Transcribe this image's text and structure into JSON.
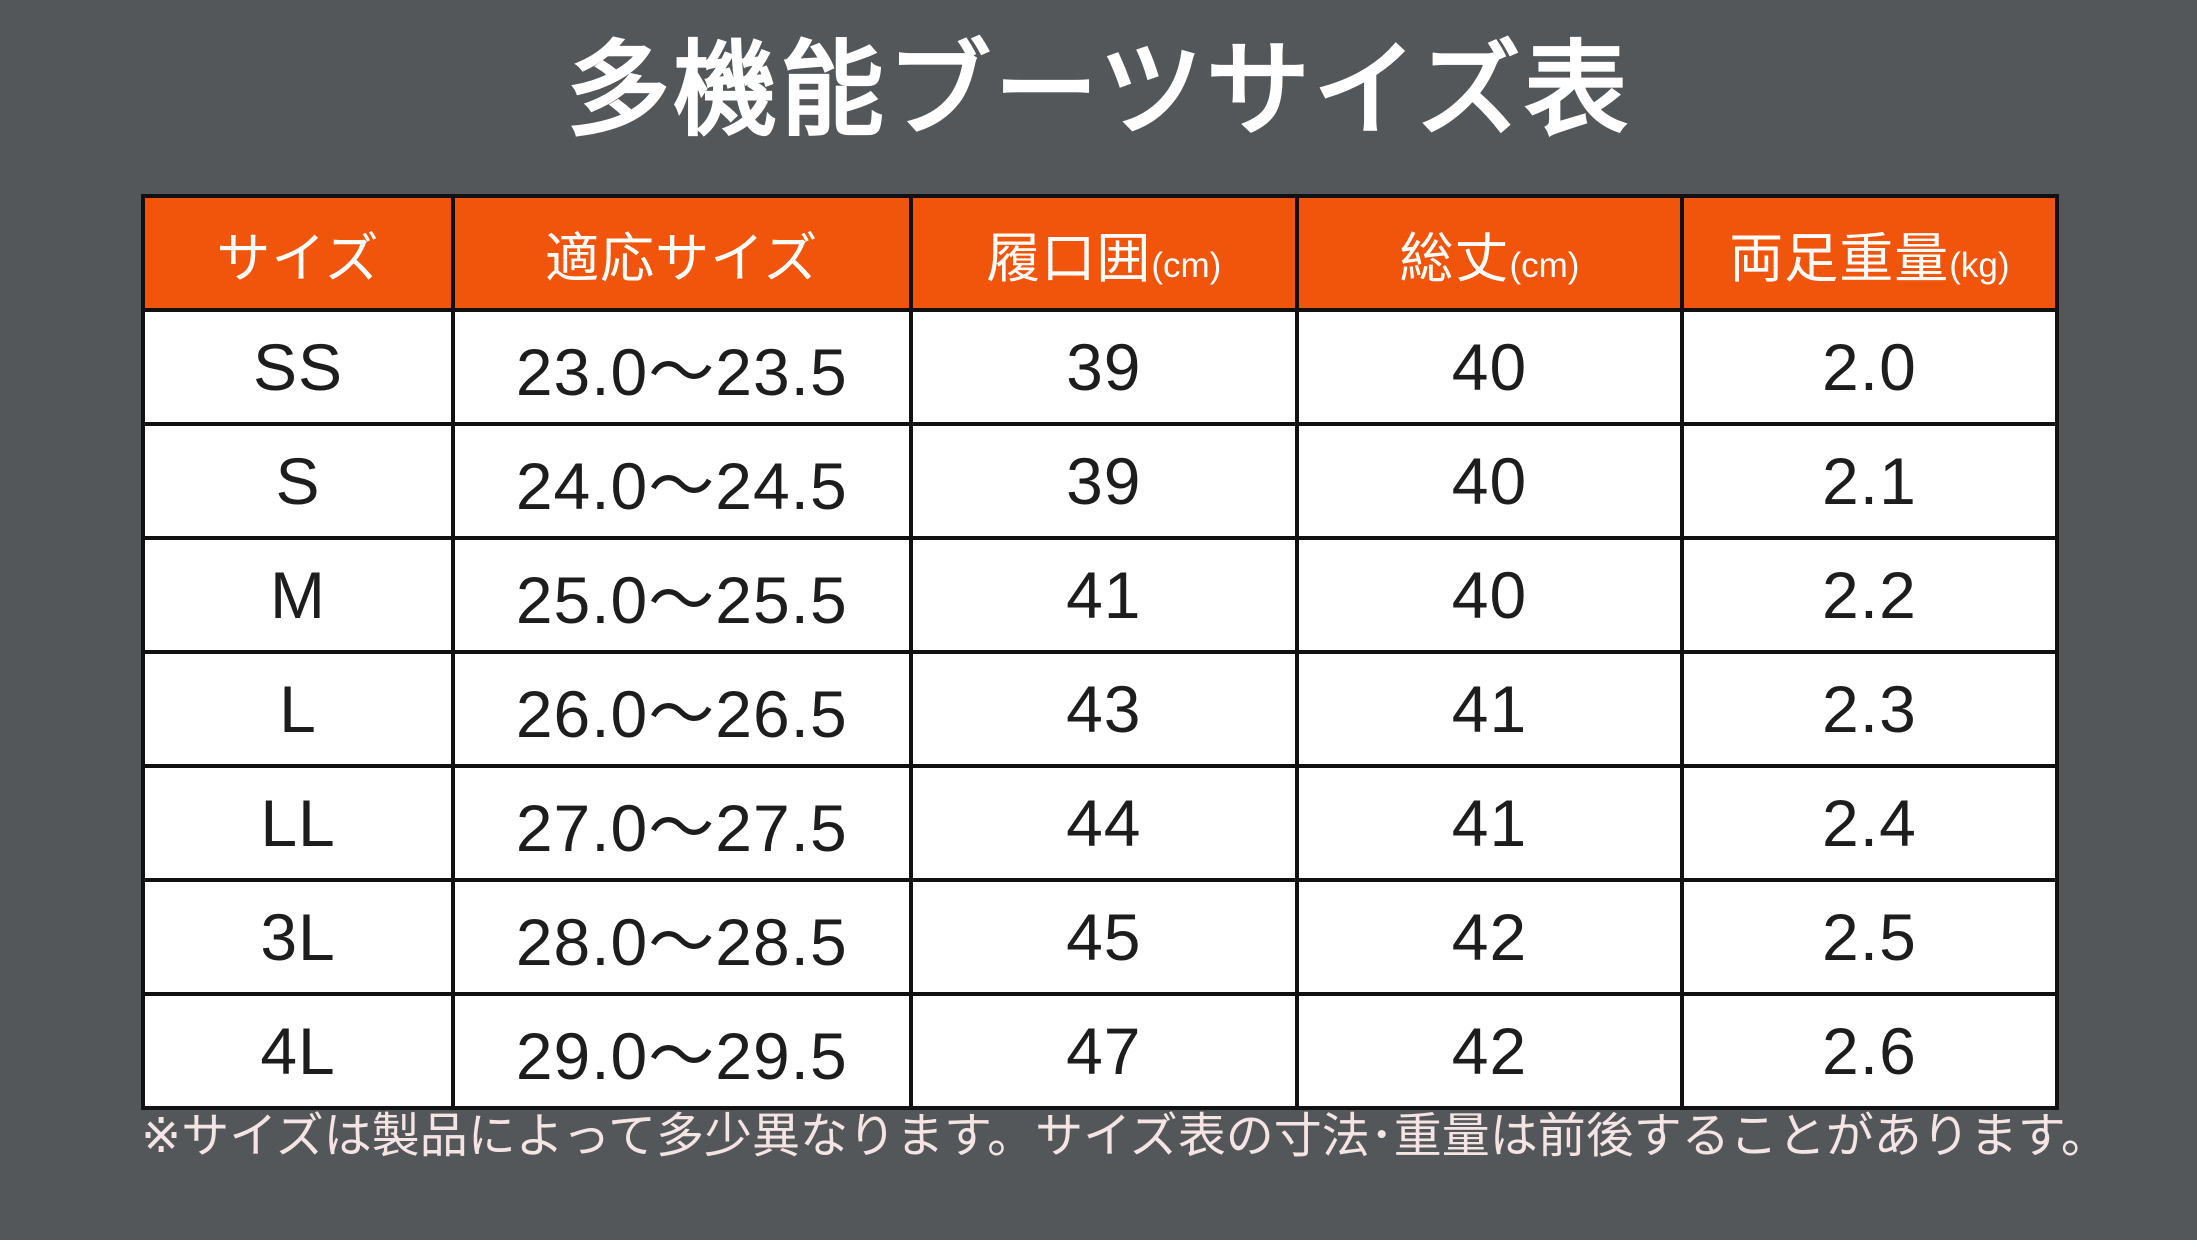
{
  "page": {
    "background_color": "#54575A",
    "title": "多機能ブーツサイズ表",
    "footnote": "※サイズは製品によって多少異なります。サイズ表の寸法･重量は前後することがあります。"
  },
  "table": {
    "header_bg_color": "#F1540B",
    "header_text_color": "#FFFFFF",
    "border_color": "#111111",
    "columns": [
      {
        "key": "size",
        "label": "サイズ",
        "unit": ""
      },
      {
        "key": "fit-size",
        "label": "適応サイズ",
        "unit": ""
      },
      {
        "key": "opening-circumference",
        "label": "履口囲",
        "unit": "(cm)"
      },
      {
        "key": "total-length",
        "label": "総丈",
        "unit": "(cm)"
      },
      {
        "key": "pair-weight",
        "label": "両足重量",
        "unit": "(kg)"
      }
    ],
    "rows": [
      [
        "SS",
        "23.0〜23.5",
        "39",
        "40",
        "2.0"
      ],
      [
        "S",
        "24.0〜24.5",
        "39",
        "40",
        "2.1"
      ],
      [
        "M",
        "25.0〜25.5",
        "41",
        "40",
        "2.2"
      ],
      [
        "L",
        "26.0〜26.5",
        "43",
        "41",
        "2.3"
      ],
      [
        "LL",
        "27.0〜27.5",
        "44",
        "41",
        "2.4"
      ],
      [
        "3L",
        "28.0〜28.5",
        "45",
        "42",
        "2.5"
      ],
      [
        "4L",
        "29.0〜29.5",
        "47",
        "42",
        "2.6"
      ]
    ]
  },
  "chart_data": {
    "type": "table",
    "title": "多機能ブーツサイズ表",
    "columns": [
      "サイズ",
      "適応サイズ",
      "履口囲(cm)",
      "総丈(cm)",
      "両足重量(kg)"
    ],
    "rows": [
      [
        "SS",
        "23.0〜23.5",
        39,
        40,
        2.0
      ],
      [
        "S",
        "24.0〜24.5",
        39,
        40,
        2.1
      ],
      [
        "M",
        "25.0〜25.5",
        41,
        40,
        2.2
      ],
      [
        "L",
        "26.0〜26.5",
        43,
        41,
        2.3
      ],
      [
        "LL",
        "27.0〜27.5",
        44,
        41,
        2.4
      ],
      [
        "3L",
        "28.0〜28.5",
        45,
        42,
        2.5
      ],
      [
        "4L",
        "29.0〜29.5",
        47,
        42,
        2.6
      ]
    ],
    "footnote": "※サイズは製品によって多少異なります。サイズ表の寸法･重量は前後することがあります。"
  }
}
